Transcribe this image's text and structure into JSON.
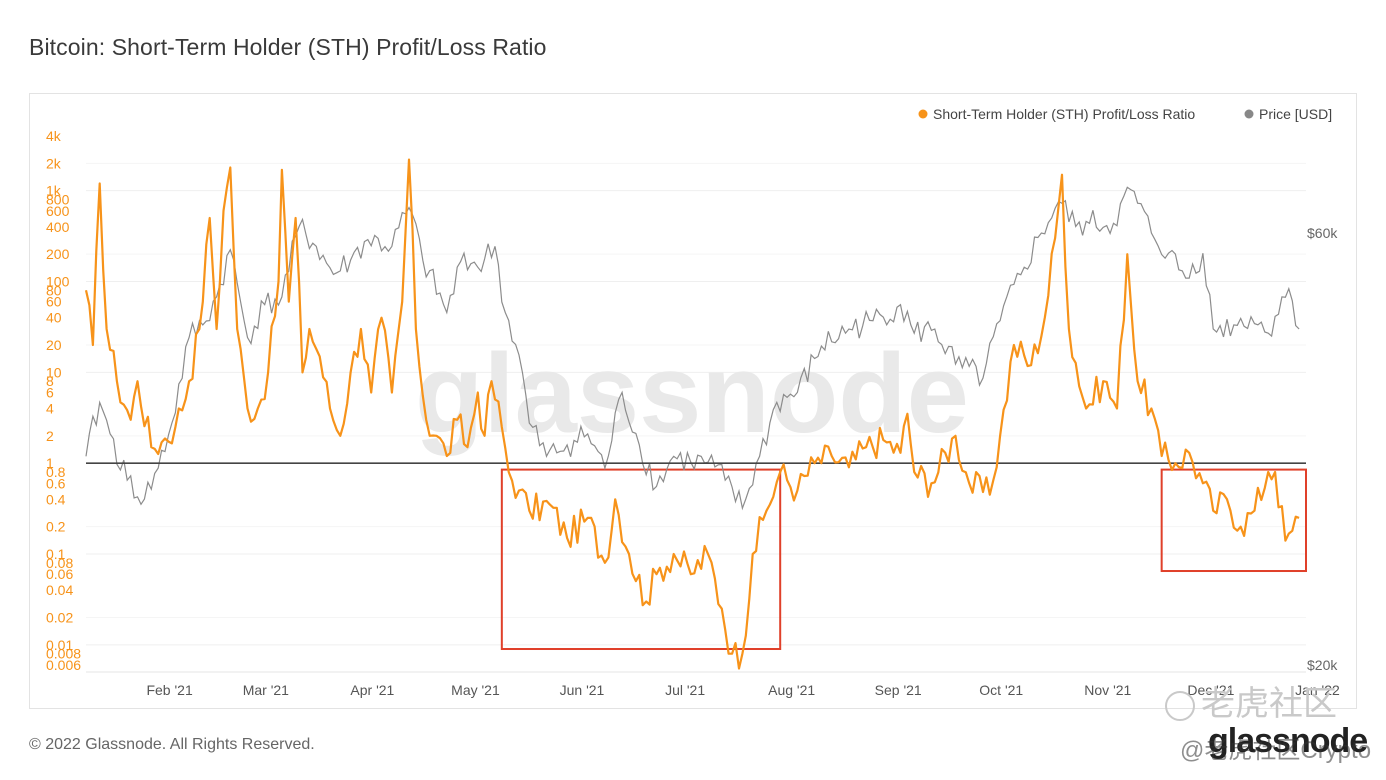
{
  "page": {
    "title": "Bitcoin: Short-Term Holder (STH) Profit/Loss Ratio",
    "copyright": "© 2022 Glassnode. All Rights Reserved.",
    "brand": "glassnode",
    "footer_overlay": "@老虎社区Crypto",
    "corner_watermark": "老虎社区"
  },
  "chart_data": {
    "type": "line",
    "title": "Bitcoin: Short-Term Holder (STH) Profit/Loss Ratio",
    "x_range": [
      "2021-01-10",
      "2021-12-29"
    ],
    "x_ticks": [
      "Feb '21",
      "Mar '21",
      "Apr '21",
      "May '21",
      "Jun '21",
      "Jul '21",
      "Aug '21",
      "Sep '21",
      "Oct '21",
      "Nov '21",
      "Dec '21",
      "Jan '22"
    ],
    "left_axis": {
      "scale": "log",
      "range": [
        0.005,
        4000
      ],
      "tick_labels": [
        "4k",
        "2k",
        "1k",
        "800",
        "600",
        "400",
        "200",
        "100",
        "80",
        "60",
        "40",
        "20",
        "10",
        "8",
        "6",
        "4",
        "2",
        "1",
        "0.8",
        "0.6",
        "0.4",
        "0.2",
        "0.1",
        "0.08",
        "0.06",
        "0.04",
        "0.02",
        "0.01",
        "0.008",
        "0.006"
      ],
      "color": "#f7931a"
    },
    "right_axis": {
      "scale": "log",
      "range_usd": [
        20000,
        75000
      ],
      "tick_labels": [
        "$60k",
        "$20k"
      ],
      "color": "#666666"
    },
    "grid": true,
    "legend_position": "top-right",
    "legend": [
      {
        "label": "Short-Term Holder (STH) Profit/Loss Ratio",
        "color": "#f7931a"
      },
      {
        "label": "Price [USD]",
        "color": "#888888"
      }
    ],
    "reference_line": {
      "value": 1,
      "color": "#444444"
    },
    "highlight_boxes": [
      {
        "x0": "2021-05-11",
        "x1": "2021-07-31",
        "y0": 0.009,
        "y1": 0.85,
        "color": "#e0402a"
      },
      {
        "x0": "2021-11-19",
        "x1": "2021-12-31",
        "y0": 0.065,
        "y1": 0.85,
        "color": "#e0402a"
      }
    ],
    "series": [
      {
        "name": "Short-Term Holder (STH) Profit/Loss Ratio",
        "axis": "left",
        "color": "#f7931a",
        "points": [
          [
            "2021-01-10",
            80
          ],
          [
            "2021-01-12",
            20
          ],
          [
            "2021-01-14",
            1200
          ],
          [
            "2021-01-16",
            30
          ],
          [
            "2021-01-19",
            8
          ],
          [
            "2021-01-23",
            3
          ],
          [
            "2021-01-25",
            8
          ],
          [
            "2021-01-29",
            1.5
          ],
          [
            "2021-02-01",
            1.7
          ],
          [
            "2021-02-05",
            2.5
          ],
          [
            "2021-02-09",
            8
          ],
          [
            "2021-02-12",
            30
          ],
          [
            "2021-02-15",
            500
          ],
          [
            "2021-02-17",
            30
          ],
          [
            "2021-02-19",
            600
          ],
          [
            "2021-02-21",
            1800
          ],
          [
            "2021-02-23",
            30
          ],
          [
            "2021-02-26",
            4
          ],
          [
            "2021-03-01",
            4
          ],
          [
            "2021-03-04",
            10
          ],
          [
            "2021-03-07",
            100
          ],
          [
            "2021-03-08",
            1700
          ],
          [
            "2021-03-10",
            60
          ],
          [
            "2021-03-12",
            500
          ],
          [
            "2021-03-14",
            10
          ],
          [
            "2021-03-16",
            30
          ],
          [
            "2021-03-19",
            15
          ],
          [
            "2021-03-22",
            4
          ],
          [
            "2021-03-25",
            2
          ],
          [
            "2021-03-28",
            10
          ],
          [
            "2021-03-31",
            30
          ],
          [
            "2021-04-03",
            6
          ],
          [
            "2021-04-06",
            40
          ],
          [
            "2021-04-09",
            6
          ],
          [
            "2021-04-12",
            60
          ],
          [
            "2021-04-14",
            2200
          ],
          [
            "2021-04-16",
            30
          ],
          [
            "2021-04-19",
            3
          ],
          [
            "2021-04-22",
            2
          ],
          [
            "2021-04-25",
            1.2
          ],
          [
            "2021-04-28",
            3
          ],
          [
            "2021-05-01",
            1.5
          ],
          [
            "2021-05-04",
            6
          ],
          [
            "2021-05-06",
            2
          ],
          [
            "2021-05-08",
            8
          ],
          [
            "2021-05-11",
            2.5
          ],
          [
            "2021-05-13",
            0.8
          ],
          [
            "2021-05-16",
            0.5
          ],
          [
            "2021-05-19",
            0.3
          ],
          [
            "2021-05-25",
            0.35
          ],
          [
            "2021-05-30",
            0.15
          ],
          [
            "2021-06-05",
            0.25
          ],
          [
            "2021-06-10",
            0.08
          ],
          [
            "2021-06-13",
            0.4
          ],
          [
            "2021-06-17",
            0.1
          ],
          [
            "2021-06-22",
            0.03
          ],
          [
            "2021-06-25",
            0.06
          ],
          [
            "2021-06-30",
            0.1
          ],
          [
            "2021-07-05",
            0.06
          ],
          [
            "2021-07-10",
            0.1
          ],
          [
            "2021-07-14",
            0.025
          ],
          [
            "2021-07-17",
            0.008
          ],
          [
            "2021-07-20",
            0.008
          ],
          [
            "2021-07-23",
            0.1
          ],
          [
            "2021-07-27",
            0.3
          ],
          [
            "2021-07-31",
            0.8
          ],
          [
            "2021-08-05",
            0.5
          ],
          [
            "2021-08-10",
            1.0
          ],
          [
            "2021-08-15",
            1.2
          ],
          [
            "2021-08-20",
            0.9
          ],
          [
            "2021-08-25",
            1.5
          ],
          [
            "2021-08-30",
            1.8
          ],
          [
            "2021-09-04",
            1.3
          ],
          [
            "2021-09-06",
            3.5
          ],
          [
            "2021-09-08",
            0.8
          ],
          [
            "2021-09-13",
            0.6
          ],
          [
            "2021-09-20",
            2.0
          ],
          [
            "2021-09-24",
            0.6
          ],
          [
            "2021-09-30",
            0.45
          ],
          [
            "2021-10-03",
            2.0
          ],
          [
            "2021-10-07",
            20
          ],
          [
            "2021-10-12",
            12
          ],
          [
            "2021-10-16",
            40
          ],
          [
            "2021-10-19",
            300
          ],
          [
            "2021-10-21",
            1500
          ],
          [
            "2021-10-23",
            30
          ],
          [
            "2021-10-28",
            4
          ],
          [
            "2021-11-02",
            8
          ],
          [
            "2021-11-06",
            4
          ],
          [
            "2021-11-09",
            200
          ],
          [
            "2021-11-12",
            8
          ],
          [
            "2021-11-16",
            4
          ],
          [
            "2021-11-19",
            1.2
          ],
          [
            "2021-11-23",
            1.0
          ],
          [
            "2021-11-27",
            1.3
          ],
          [
            "2021-12-01",
            0.6
          ],
          [
            "2021-12-04",
            0.3
          ],
          [
            "2021-12-08",
            0.4
          ],
          [
            "2021-12-12",
            0.2
          ],
          [
            "2021-12-16",
            0.3
          ],
          [
            "2021-12-20",
            0.8
          ],
          [
            "2021-12-22",
            0.8
          ],
          [
            "2021-12-25",
            0.14
          ],
          [
            "2021-12-27",
            0.18
          ],
          [
            "2021-12-29",
            0.25
          ]
        ]
      },
      {
        "name": "Price [USD]",
        "axis": "right",
        "color": "#888888",
        "points": [
          [
            "2021-01-10",
            34000
          ],
          [
            "2021-01-14",
            39000
          ],
          [
            "2021-01-17",
            36000
          ],
          [
            "2021-01-22",
            32000
          ],
          [
            "2021-01-27",
            30500
          ],
          [
            "2021-01-31",
            33000
          ],
          [
            "2021-02-04",
            37000
          ],
          [
            "2021-02-09",
            46000
          ],
          [
            "2021-02-13",
            47500
          ],
          [
            "2021-02-17",
            51000
          ],
          [
            "2021-02-21",
            57500
          ],
          [
            "2021-02-26",
            46000
          ],
          [
            "2021-03-03",
            50000
          ],
          [
            "2021-03-08",
            51000
          ],
          [
            "2021-03-13",
            61000
          ],
          [
            "2021-03-18",
            58000
          ],
          [
            "2021-03-23",
            54000
          ],
          [
            "2021-03-28",
            56000
          ],
          [
            "2021-04-02",
            59000
          ],
          [
            "2021-04-09",
            58000
          ],
          [
            "2021-04-14",
            64000
          ],
          [
            "2021-04-18",
            56000
          ],
          [
            "2021-04-25",
            49000
          ],
          [
            "2021-04-30",
            57000
          ],
          [
            "2021-05-04",
            55000
          ],
          [
            "2021-05-09",
            58000
          ],
          [
            "2021-05-12",
            49000
          ],
          [
            "2021-05-16",
            44000
          ],
          [
            "2021-05-19",
            37000
          ],
          [
            "2021-05-24",
            34000
          ],
          [
            "2021-05-30",
            35000
          ],
          [
            "2021-06-05",
            36000
          ],
          [
            "2021-06-10",
            33000
          ],
          [
            "2021-06-15",
            40000
          ],
          [
            "2021-06-20",
            35000
          ],
          [
            "2021-06-25",
            31500
          ],
          [
            "2021-06-30",
            34000
          ],
          [
            "2021-07-05",
            33500
          ],
          [
            "2021-07-10",
            33500
          ],
          [
            "2021-07-15",
            32000
          ],
          [
            "2021-07-20",
            29800
          ],
          [
            "2021-07-25",
            34000
          ],
          [
            "2021-07-30",
            39000
          ],
          [
            "2021-08-05",
            40000
          ],
          [
            "2021-08-12",
            45000
          ],
          [
            "2021-08-20",
            47000
          ],
          [
            "2021-08-27",
            48000
          ],
          [
            "2021-09-04",
            50000
          ],
          [
            "2021-09-08",
            46500
          ],
          [
            "2021-09-14",
            47000
          ],
          [
            "2021-09-20",
            43000
          ],
          [
            "2021-09-28",
            41500
          ],
          [
            "2021-10-03",
            48000
          ],
          [
            "2021-10-10",
            55000
          ],
          [
            "2021-10-15",
            60000
          ],
          [
            "2021-10-20",
            65000
          ],
          [
            "2021-10-25",
            61000
          ],
          [
            "2021-10-29",
            61500
          ],
          [
            "2021-11-05",
            61500
          ],
          [
            "2021-11-10",
            67000
          ],
          [
            "2021-11-16",
            60000
          ],
          [
            "2021-11-21",
            57000
          ],
          [
            "2021-11-26",
            53500
          ],
          [
            "2021-12-01",
            57000
          ],
          [
            "2021-12-04",
            47000
          ],
          [
            "2021-12-10",
            47500
          ],
          [
            "2021-12-15",
            48500
          ],
          [
            "2021-12-20",
            46500
          ],
          [
            "2021-12-24",
            51000
          ],
          [
            "2021-12-27",
            50500
          ],
          [
            "2021-12-29",
            47000
          ]
        ]
      }
    ]
  }
}
